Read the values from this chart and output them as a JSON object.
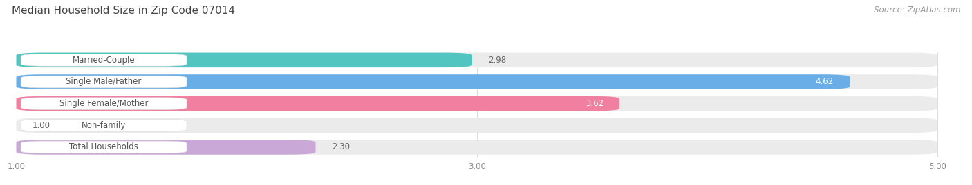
{
  "title": "Median Household Size in Zip Code 07014",
  "source": "Source: ZipAtlas.com",
  "categories": [
    "Married-Couple",
    "Single Male/Father",
    "Single Female/Mother",
    "Non-family",
    "Total Households"
  ],
  "values": [
    2.98,
    4.62,
    3.62,
    1.0,
    2.3
  ],
  "bar_colors": [
    "#52c5c0",
    "#6aaee8",
    "#f07fa0",
    "#f5c99a",
    "#c9a8d8"
  ],
  "value_positions": [
    "outside_right",
    "inside_right",
    "inside_right",
    "outside_right",
    "outside_right"
  ],
  "value_colors_outside": [
    "#666666",
    "#666666",
    "#666666",
    "#666666",
    "#666666"
  ],
  "value_colors_inside": [
    "#ffffff",
    "#ffffff",
    "#ffffff",
    "#ffffff",
    "#ffffff"
  ],
  "xmin": 1.0,
  "xmax": 5.0,
  "xticks": [
    1.0,
    3.0,
    5.0
  ],
  "xtick_labels": [
    "1.00",
    "3.00",
    "5.00"
  ],
  "background_color": "#ffffff",
  "bar_bg_color": "#ebebeb",
  "label_box_color": "#ffffff",
  "label_text_color": "#555555",
  "title_fontsize": 11,
  "source_fontsize": 8.5,
  "label_fontsize": 8.5,
  "value_fontsize": 8.5,
  "tick_fontsize": 8.5
}
